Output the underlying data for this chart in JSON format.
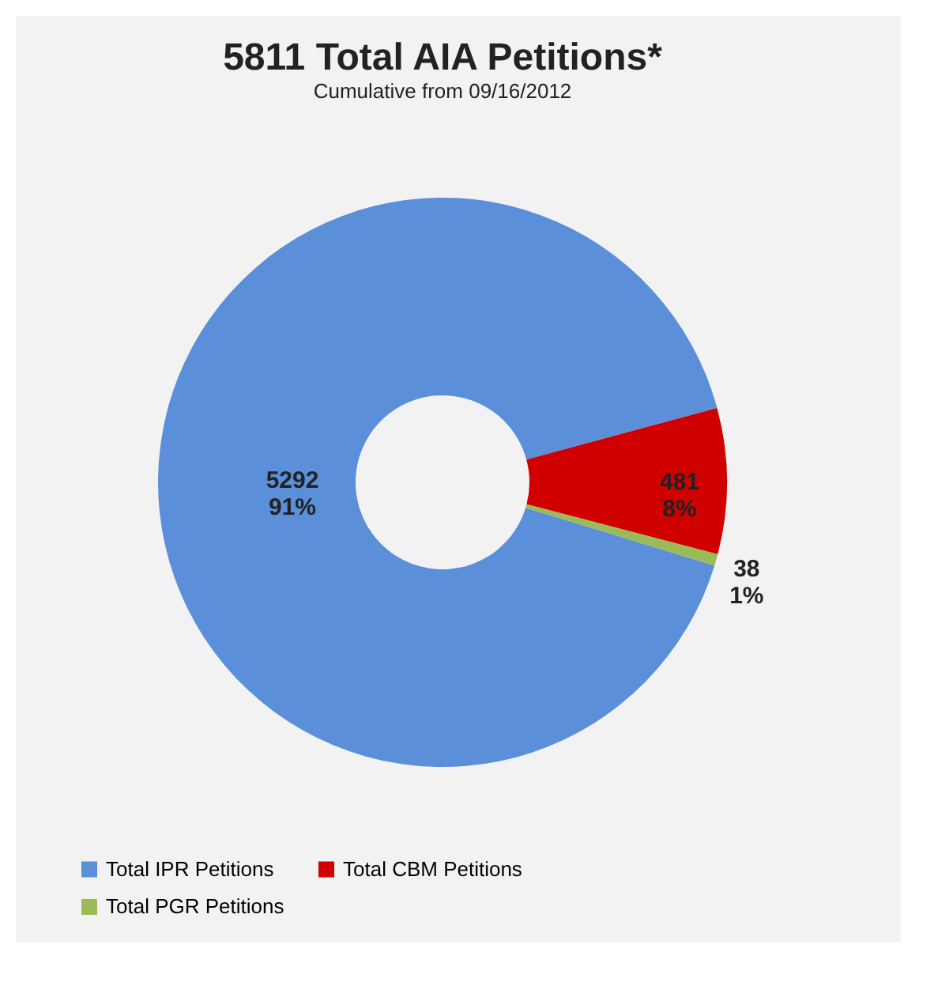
{
  "chart_data": {
    "type": "donut",
    "title": "5811 Total AIA Petitions*",
    "subtitle": "Cumulative from 09/16/2012",
    "categories": [
      "Total IPR Petitions",
      "Total CBM Petitions",
      "Total PGR Petitions"
    ],
    "values": [
      5292,
      481,
      38
    ],
    "colors": [
      "#5b8fd9",
      "#d00000",
      "#9bbb59"
    ],
    "value_labels": [
      "5292 91%",
      "481 8%",
      "38 1%"
    ],
    "legend": "bottom"
  }
}
